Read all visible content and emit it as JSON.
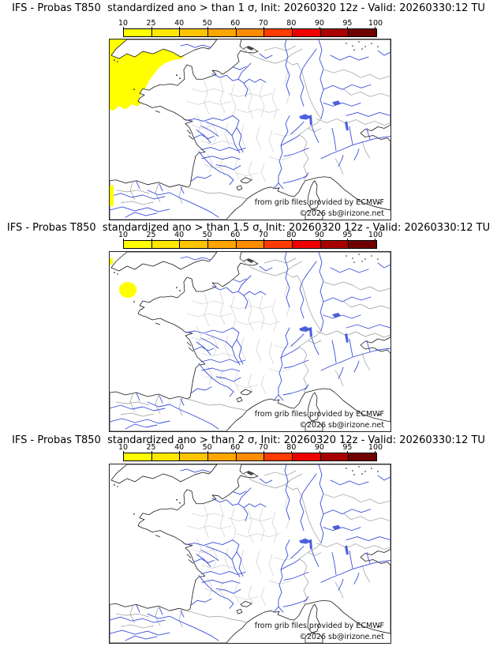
{
  "page": {
    "background": "#ffffff"
  },
  "panels": [
    {
      "title": "IFS - Probas T850  standardized ano > than 1 σ, Init: 20260320 12z - Valid: 20260330:12 TU",
      "threshold_sigma": "1"
    },
    {
      "title": "IFS - Probas T850  standardized ano > than 1.5 σ, Init: 20260320 12z - Valid: 20260330:12 TU",
      "threshold_sigma": "1.5"
    },
    {
      "title": "IFS - Probas T850  standardized ano > than 2 σ, Init: 20260320 12z - Valid: 20260330:12 TU",
      "threshold_sigma": "2"
    }
  ],
  "colorbar": {
    "ticks": [
      "10",
      "25",
      "40",
      "50",
      "60",
      "70",
      "80",
      "90",
      "95",
      "100"
    ],
    "colors": [
      "#ffff00",
      "#ffe800",
      "#ffc400",
      "#ffa500",
      "#ff8c00",
      "#ff3c00",
      "#ee0000",
      "#a80000",
      "#700000"
    ]
  },
  "attribution": {
    "line1": "from grib files provided by ECMWF",
    "line2": "©2026 sb@irizone.net"
  },
  "map_colors": {
    "river": "#3a4fd8",
    "coast": "#1a1a1a",
    "department": "#c6c6c6",
    "country_border": "#9a9a9a",
    "highlight": "#ffff00",
    "sea": "#ffffff"
  },
  "chart_data": [
    {
      "type": "heatmap",
      "title": "IFS - Probas T850  standardized ano > than 1 σ, Init: 20260320 12z - Valid: 20260330:12 TU",
      "variable": "T850 standardized anomaly probability",
      "threshold_sigma": 1,
      "init": "20260320 12z",
      "valid": "20260330:12 TU",
      "colorbar_ticks": [
        10,
        25,
        40,
        50,
        60,
        70,
        80,
        90,
        95,
        100
      ],
      "legend_position": "top",
      "regions_exceeding": [
        {
          "value_percent": "10-25",
          "location": "Atlantic / Celtic Sea west of Brittany and Cornwall, upper-left of map"
        },
        {
          "value_percent": "10-25",
          "location": "small strip on left map edge near northern Spain"
        }
      ]
    },
    {
      "type": "heatmap",
      "title": "IFS - Probas T850  standardized ano > than 1.5 σ, Init: 20260320 12z - Valid: 20260330:12 TU",
      "variable": "T850 standardized anomaly probability",
      "threshold_sigma": 1.5,
      "init": "20260320 12z",
      "valid": "20260330:12 TU",
      "colorbar_ticks": [
        10,
        25,
        40,
        50,
        60,
        70,
        80,
        90,
        95,
        100
      ],
      "legend_position": "top",
      "regions_exceeding": [
        {
          "value_percent": "10-25",
          "location": "small blob in the sea west of Brittany / south of Cornwall"
        },
        {
          "value_percent": "10-25",
          "location": "tiny patch on left map edge in the Channel approaches"
        }
      ]
    },
    {
      "type": "heatmap",
      "title": "IFS - Probas T850  standardized ano > than 2 σ, Init: 20260320 12z - Valid: 20260330:12 TU",
      "variable": "T850 standardized anomaly probability",
      "threshold_sigma": 2,
      "init": "20260320 12z",
      "valid": "20260330:12 TU",
      "colorbar_ticks": [
        10,
        25,
        40,
        50,
        60,
        70,
        80,
        90,
        95,
        100
      ],
      "legend_position": "top",
      "regions_exceeding": []
    }
  ]
}
